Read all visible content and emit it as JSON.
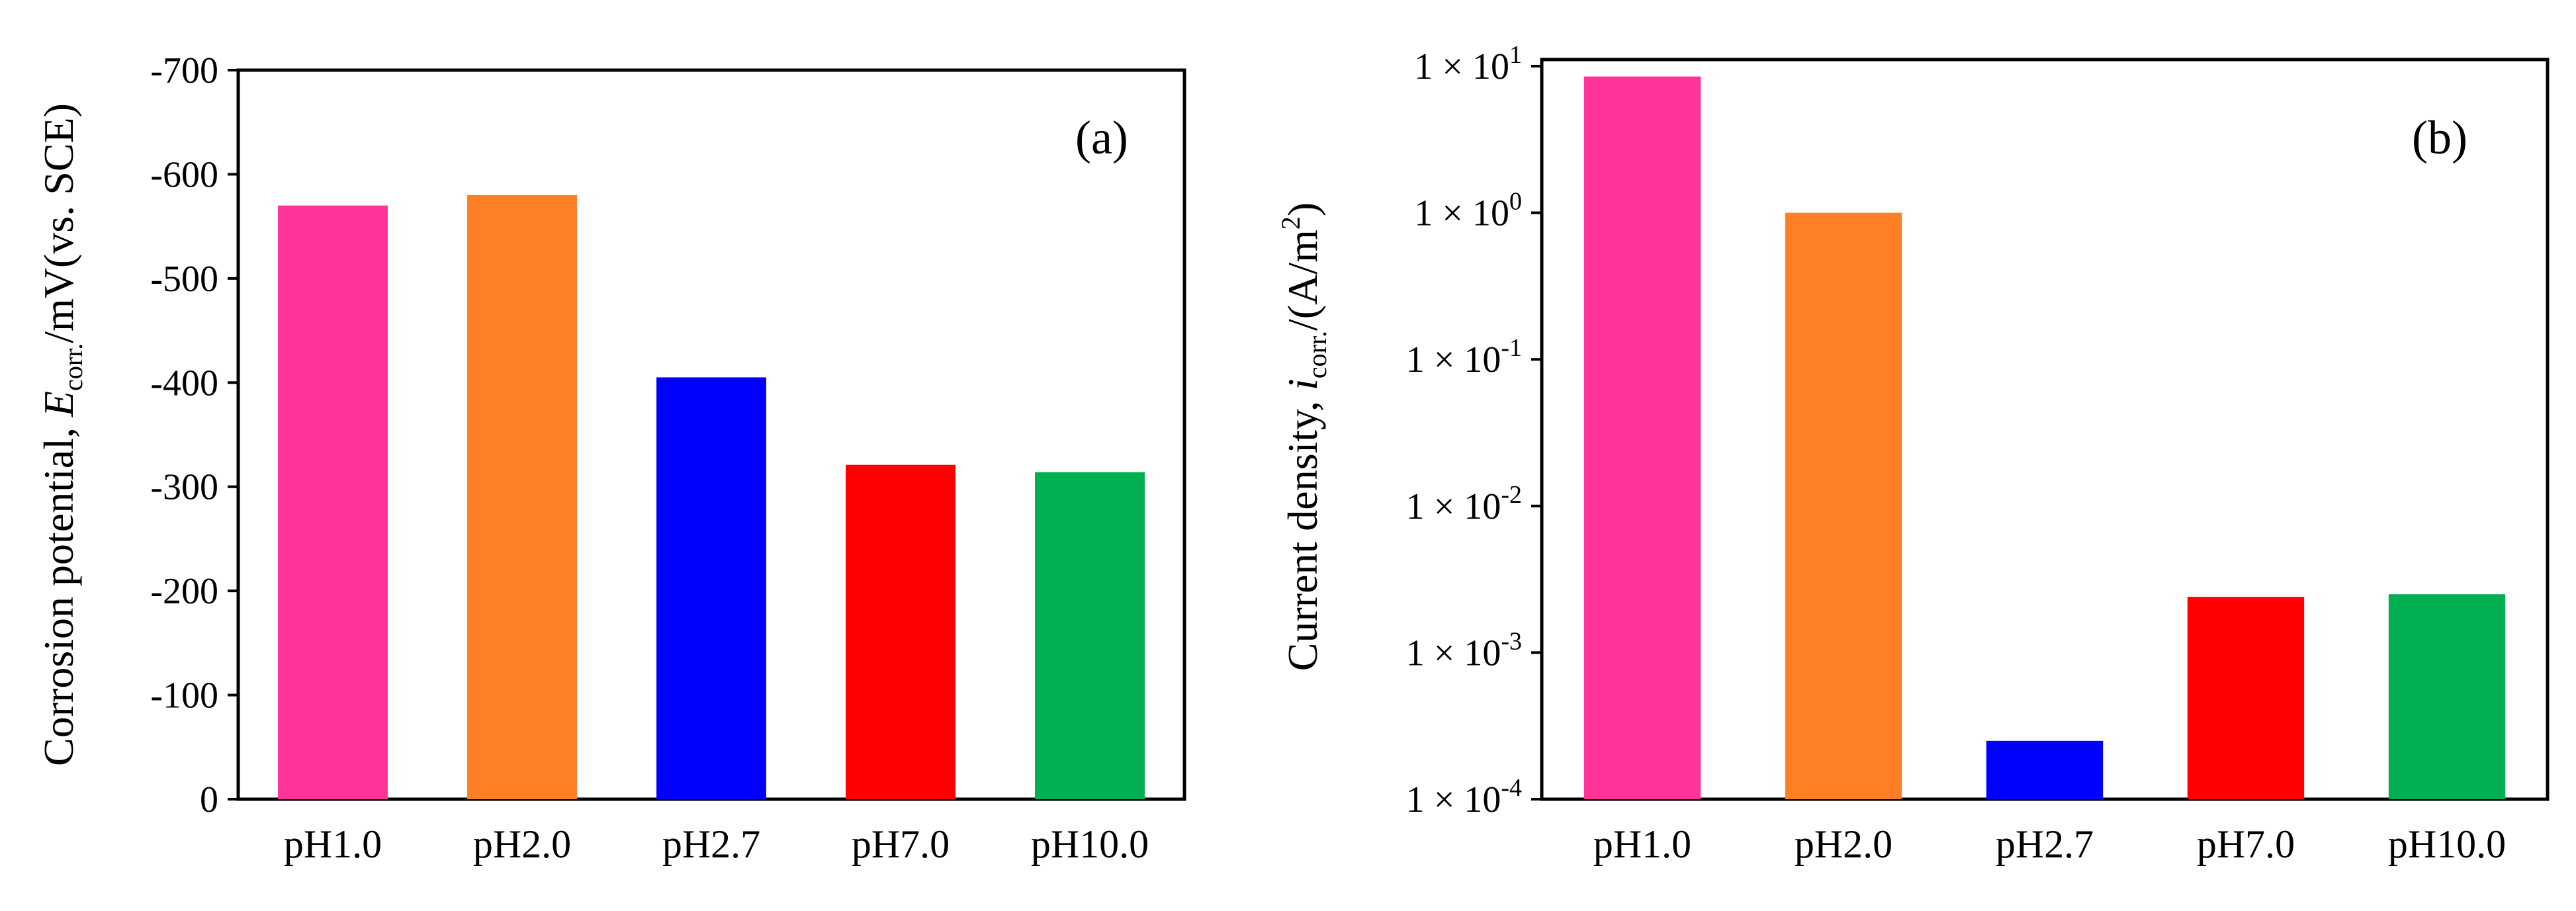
{
  "chart_data": [
    {
      "type": "bar",
      "panel": "(a)",
      "categories": [
        "pH1.0",
        "pH2.0",
        "pH2.7",
        "pH7.0",
        "pH10.0"
      ],
      "values": [
        -570,
        -580,
        -405,
        -321,
        -314
      ],
      "colors": [
        "#ff3399",
        "#ff7f27",
        "#0000ff",
        "#ff0000",
        "#00b050"
      ],
      "ylabel": {
        "pre": "Corrosion potential, ",
        "sym": "E",
        "sub": "corr.",
        "post": "/mV(vs. SCE)"
      },
      "ylim": [
        0,
        -700
      ],
      "yticks": [
        0,
        -100,
        -200,
        -300,
        -400,
        -500,
        -600,
        -700
      ],
      "ytick_labels": [
        "0",
        "-100",
        "-200",
        "-300",
        "-400",
        "-500",
        "-600",
        "-700"
      ],
      "xlabel": ""
    },
    {
      "type": "bar",
      "scale": "log",
      "panel": "(b)",
      "categories": [
        "pH1.0",
        "pH2.0",
        "pH2.7",
        "pH7.0",
        "pH10.0"
      ],
      "values": [
        8.5,
        1.0,
        0.00025,
        0.0024,
        0.0025
      ],
      "colors": [
        "#ff3399",
        "#ff7f27",
        "#0000ff",
        "#ff0000",
        "#00b050"
      ],
      "ylabel": {
        "pre": "Current density, ",
        "sym": "i",
        "sub": "corr.",
        "post": "/(A/m",
        "sup": "2",
        "end": ")"
      },
      "ylim": [
        0.0001,
        10
      ],
      "yticks": [
        1,
        0,
        -1,
        -2,
        -3,
        -4
      ],
      "ytick_mantissa": "1 × 10",
      "ytick_exponents": [
        "1",
        "0",
        "-1",
        "-2",
        "-3",
        "-4"
      ],
      "xlabel": ""
    }
  ]
}
